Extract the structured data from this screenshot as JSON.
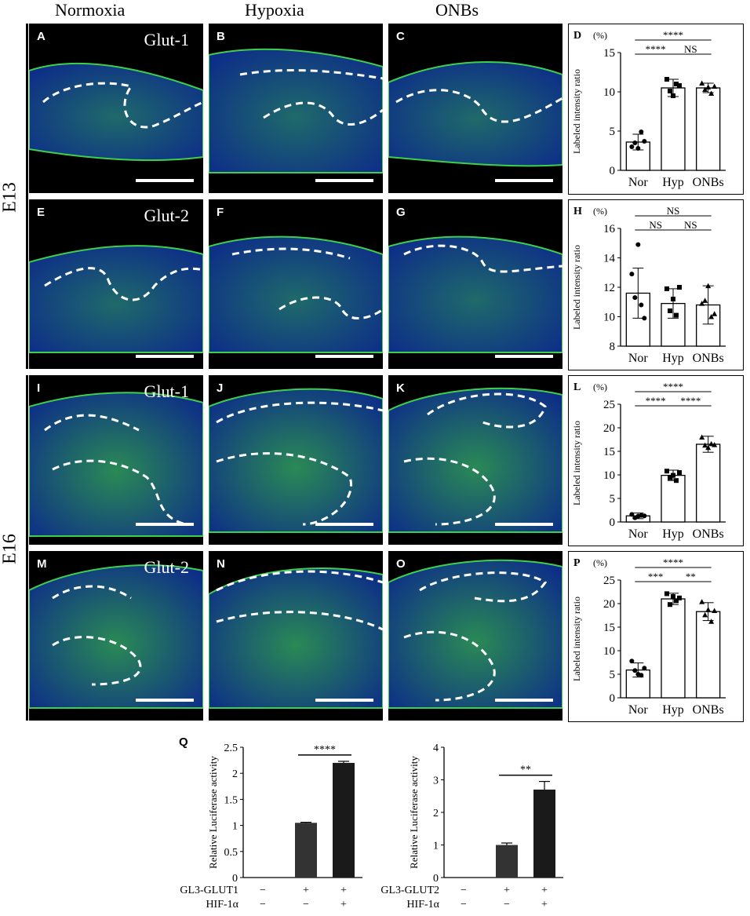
{
  "columns": [
    "Normoxia",
    "Hypoxia",
    "ONBs"
  ],
  "rows": [
    "E13",
    "E16"
  ],
  "panels": [
    {
      "letter": "A",
      "marker": "Glut-1"
    },
    {
      "letter": "B",
      "marker": ""
    },
    {
      "letter": "C",
      "marker": ""
    },
    {
      "letter": "E",
      "marker": "Glut-2"
    },
    {
      "letter": "F",
      "marker": ""
    },
    {
      "letter": "G",
      "marker": ""
    },
    {
      "letter": "I",
      "marker": "Glut-1"
    },
    {
      "letter": "J",
      "marker": ""
    },
    {
      "letter": "K",
      "marker": ""
    },
    {
      "letter": "M",
      "marker": "Glut-2"
    },
    {
      "letter": "N",
      "marker": ""
    },
    {
      "letter": "O",
      "marker": ""
    }
  ],
  "q_letter": "Q",
  "chart_data": [
    {
      "id": "D",
      "type": "bar",
      "categories": [
        "Nor",
        "Hyp",
        "ONBs"
      ],
      "values": [
        3.6,
        10.5,
        10.5
      ],
      "errors": [
        1.0,
        1.1,
        0.6
      ],
      "points": [
        [
          3.0,
          3.5,
          2.8,
          4.9,
          3.7
        ],
        [
          11.6,
          10.1,
          9.5,
          11.0,
          10.8
        ],
        [
          11.1,
          10.3,
          10.6,
          9.8,
          10.7
        ]
      ],
      "ylabel": "Labeled intensity ratio",
      "unit": "(%)",
      "ylim": [
        0,
        15
      ],
      "yticks": [
        0,
        5,
        10,
        15
      ],
      "sig": [
        {
          "from": 0,
          "to": 2,
          "label": "****",
          "level": 0
        },
        {
          "from": 0,
          "to": 1,
          "label": "****",
          "level": 1
        },
        {
          "from": 1,
          "to": 2,
          "label": "NS",
          "level": 1
        }
      ]
    },
    {
      "id": "H",
      "type": "bar",
      "categories": [
        "Nor",
        "Hyp",
        "ONBs"
      ],
      "values": [
        11.6,
        10.9,
        10.8
      ],
      "errors": [
        1.7,
        1.0,
        1.3
      ],
      "points": [
        [
          12.9,
          11.3,
          14.9,
          10.8,
          9.9
        ],
        [
          11.9,
          10.4,
          11.2,
          10.1,
          12.0
        ],
        [
          10.9,
          11.1,
          12.1,
          10.0,
          10.2
        ]
      ],
      "ylabel": "Labeled intensity ratio",
      "unit": "(%)",
      "ylim": [
        8,
        16
      ],
      "yticks": [
        8,
        10,
        12,
        14,
        16
      ],
      "sig": [
        {
          "from": 0,
          "to": 2,
          "label": "NS",
          "level": 0
        },
        {
          "from": 0,
          "to": 1,
          "label": "NS",
          "level": 1
        },
        {
          "from": 1,
          "to": 2,
          "label": "NS",
          "level": 1
        }
      ]
    },
    {
      "id": "L",
      "type": "bar",
      "categories": [
        "Nor",
        "Hyp",
        "ONBs"
      ],
      "values": [
        1.3,
        9.9,
        16.5
      ],
      "errors": [
        0.6,
        1.1,
        1.7
      ],
      "points": [
        [
          1.6,
          0.9,
          1.2,
          1.4,
          1.3
        ],
        [
          10.8,
          9.4,
          9.9,
          8.8,
          10.5
        ],
        [
          18.0,
          16.3,
          15.8,
          16.6,
          16.4
        ]
      ],
      "ylabel": "Labeled intensity ratio",
      "unit": "(%)",
      "ylim": [
        0,
        25
      ],
      "yticks": [
        0,
        5,
        10,
        15,
        20,
        25
      ],
      "sig": [
        {
          "from": 0,
          "to": 2,
          "label": "****",
          "level": 0
        },
        {
          "from": 0,
          "to": 1,
          "label": "****",
          "level": 1
        },
        {
          "from": 1,
          "to": 2,
          "label": "****",
          "level": 1
        }
      ]
    },
    {
      "id": "P",
      "type": "bar",
      "categories": [
        "Nor",
        "Hyp",
        "ONBs"
      ],
      "values": [
        5.9,
        21.0,
        18.3
      ],
      "errors": [
        1.5,
        1.2,
        1.9
      ],
      "points": [
        [
          7.8,
          5.8,
          5.0,
          4.8,
          6.3
        ],
        [
          22.1,
          19.8,
          21.5,
          20.6,
          21.2
        ],
        [
          20.4,
          17.6,
          18.7,
          16.2,
          18.5
        ]
      ],
      "ylabel": "Labeled intensity ratio",
      "unit": "(%)",
      "ylim": [
        0,
        25
      ],
      "yticks": [
        0,
        5,
        10,
        15,
        20,
        25
      ],
      "sig": [
        {
          "from": 0,
          "to": 2,
          "label": "****",
          "level": 0
        },
        {
          "from": 0,
          "to": 1,
          "label": "***",
          "level": 1
        },
        {
          "from": 1,
          "to": 2,
          "label": "**",
          "level": 1
        }
      ]
    },
    {
      "id": "Q1",
      "type": "bar",
      "values": [
        0,
        1.05,
        2.2
      ],
      "errors": [
        0,
        0.01,
        0.03
      ],
      "ylabel": "Relative Luciferase activity",
      "ylim": [
        0,
        2.5
      ],
      "yticks": [
        0,
        0.5,
        1,
        1.5,
        2,
        2.5
      ],
      "ytick_labels": [
        "0",
        "0.5",
        "1",
        "1.5",
        "2",
        "2.5"
      ],
      "row_labels": [
        "pGL3-GLUT1",
        "HIF-1α"
      ],
      "row_signs": [
        [
          "−",
          "+",
          "+"
        ],
        [
          "−",
          "−",
          "+"
        ]
      ],
      "sig": [
        {
          "from": 1,
          "to": 2,
          "label": "****"
        }
      ]
    },
    {
      "id": "Q2",
      "type": "bar",
      "values": [
        0,
        1.0,
        2.7
      ],
      "errors": [
        0,
        0.06,
        0.25
      ],
      "ylabel": "Relative Luciferase activity",
      "ylim": [
        0,
        4
      ],
      "yticks": [
        0,
        1,
        2,
        3,
        4
      ],
      "ytick_labels": [
        "0",
        "1",
        "2",
        "3",
        "4"
      ],
      "row_labels": [
        "pGL3-GLUT2",
        "HIF-1α"
      ],
      "row_signs": [
        [
          "−",
          "+",
          "+"
        ],
        [
          "−",
          "−",
          "+"
        ]
      ],
      "sig": [
        {
          "from": 1,
          "to": 2,
          "label": "**"
        }
      ]
    }
  ]
}
